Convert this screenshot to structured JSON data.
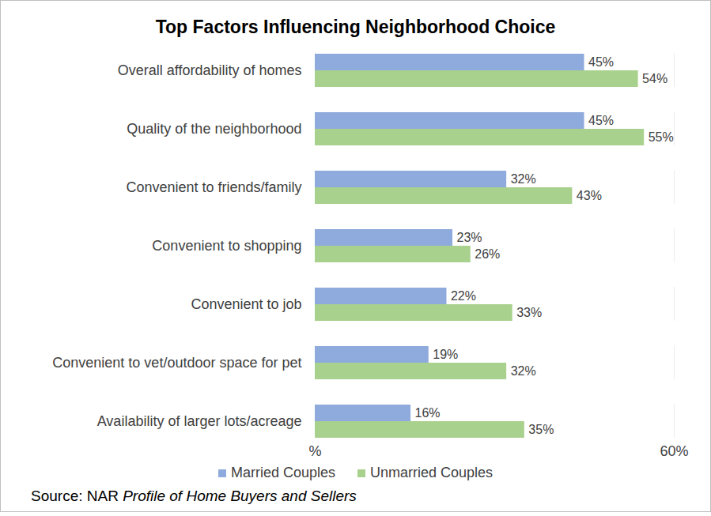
{
  "chart_data": {
    "type": "bar",
    "orientation": "horizontal",
    "title": "Top Factors Influencing Neighborhood Choice",
    "categories": [
      "Overall affordability of homes",
      "Quality of the neighborhood",
      "Convenient to friends/family",
      "Convenient to shopping",
      "Convenient to job",
      "Convenient to vet/outdoor space for pet",
      "Availability of larger lots/acreage"
    ],
    "series": [
      {
        "name": "Married Couples",
        "color": "#8faadc",
        "values": [
          45,
          45,
          32,
          23,
          22,
          19,
          16
        ],
        "value_labels": [
          "45%",
          "45%",
          "32%",
          "23%",
          "22%",
          "19%",
          "16%"
        ]
      },
      {
        "name": "Unmarried Couples",
        "color": "#a9d18e",
        "values": [
          54,
          55,
          43,
          26,
          33,
          32,
          35
        ],
        "value_labels": [
          "54%",
          "55%",
          "43%",
          "26%",
          "33%",
          "32%",
          "35%"
        ]
      }
    ],
    "xlim": [
      0,
      60
    ],
    "xticks": [
      {
        "value": 0,
        "label": "%"
      },
      {
        "value": 60,
        "label": "60%"
      }
    ],
    "grid": true,
    "data_labels": true,
    "legend": "bottom",
    "source": {
      "prefix": "Source: NAR",
      "title": "Profile of Home Buyers and Sellers"
    }
  }
}
